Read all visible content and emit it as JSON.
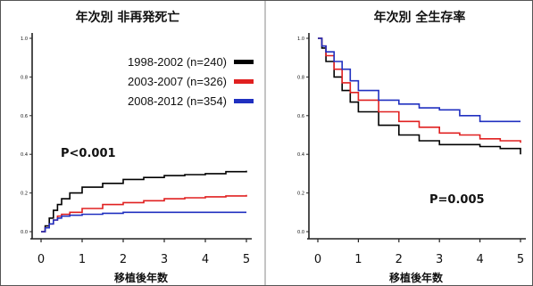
{
  "chart_data": [
    {
      "type": "line",
      "title": "年次別 非再発死亡",
      "xlabel": "移植後年数",
      "ylabel": "",
      "xlim": [
        0,
        5
      ],
      "ylim": [
        0,
        1.0
      ],
      "x_ticks": [
        "0",
        "1",
        "2",
        "3",
        "4",
        "5"
      ],
      "y_ticks": [
        "0.0",
        "0.2",
        "0.4",
        "0.6",
        "0.8",
        "1.0"
      ],
      "grid": false,
      "legend_position": "top-right",
      "annotation": "P<0.001",
      "series": [
        {
          "name": "1998-2002 (n=240)",
          "color": "#000000",
          "x": [
            0,
            0.1,
            0.2,
            0.3,
            0.4,
            0.5,
            0.7,
            1.0,
            1.5,
            2.0,
            2.5,
            3.0,
            3.5,
            4.0,
            4.5,
            5.0
          ],
          "y": [
            0,
            0.03,
            0.07,
            0.11,
            0.14,
            0.17,
            0.2,
            0.23,
            0.25,
            0.27,
            0.28,
            0.29,
            0.295,
            0.3,
            0.31,
            0.315
          ]
        },
        {
          "name": "2003-2007 (n=326)",
          "color": "#e02020",
          "x": [
            0,
            0.1,
            0.2,
            0.3,
            0.4,
            0.5,
            0.7,
            1.0,
            1.5,
            2.0,
            2.5,
            3.0,
            3.5,
            4.0,
            4.5,
            5.0
          ],
          "y": [
            0,
            0.02,
            0.04,
            0.06,
            0.08,
            0.09,
            0.1,
            0.12,
            0.14,
            0.15,
            0.16,
            0.17,
            0.175,
            0.18,
            0.185,
            0.19
          ]
        },
        {
          "name": "2008-2012 (n=354)",
          "color": "#2030c0",
          "x": [
            0,
            0.1,
            0.2,
            0.3,
            0.4,
            0.5,
            0.7,
            1.0,
            1.5,
            2.0,
            2.5,
            3.0,
            3.5,
            4.0,
            4.5,
            5.0
          ],
          "y": [
            0,
            0.02,
            0.04,
            0.06,
            0.07,
            0.08,
            0.085,
            0.09,
            0.095,
            0.1,
            0.1,
            0.1,
            0.1,
            0.1,
            0.1,
            0.1
          ]
        }
      ]
    },
    {
      "type": "line",
      "title": "年次別 全生存率",
      "xlabel": "移植後年数",
      "ylabel": "",
      "xlim": [
        0,
        5
      ],
      "ylim": [
        0,
        1.0
      ],
      "x_ticks": [
        "0",
        "1",
        "2",
        "3",
        "4",
        "5"
      ],
      "y_ticks": [
        "0.0",
        "0.2",
        "0.4",
        "0.6",
        "0.8",
        "1.0"
      ],
      "grid": false,
      "annotation": "P=0.005",
      "series": [
        {
          "name": "1998-2002 (n=240)",
          "color": "#000000",
          "x": [
            0,
            0.1,
            0.2,
            0.4,
            0.6,
            0.8,
            1.0,
            1.5,
            2.0,
            2.5,
            3.0,
            3.5,
            4.0,
            4.5,
            5.0
          ],
          "y": [
            1.0,
            0.95,
            0.88,
            0.8,
            0.73,
            0.67,
            0.62,
            0.55,
            0.5,
            0.47,
            0.45,
            0.45,
            0.44,
            0.43,
            0.4
          ]
        },
        {
          "name": "2003-2007 (n=326)",
          "color": "#e02020",
          "x": [
            0,
            0.1,
            0.2,
            0.4,
            0.6,
            0.8,
            1.0,
            1.5,
            2.0,
            2.5,
            3.0,
            3.5,
            4.0,
            4.5,
            5.0
          ],
          "y": [
            1.0,
            0.96,
            0.91,
            0.84,
            0.77,
            0.72,
            0.68,
            0.62,
            0.57,
            0.54,
            0.51,
            0.5,
            0.48,
            0.47,
            0.46
          ]
        },
        {
          "name": "2008-2012 (n=354)",
          "color": "#2030c0",
          "x": [
            0,
            0.1,
            0.2,
            0.4,
            0.6,
            0.8,
            1.0,
            1.5,
            2.0,
            2.5,
            3.0,
            3.5,
            4.0,
            4.5,
            5.0
          ],
          "y": [
            1.0,
            0.96,
            0.93,
            0.88,
            0.84,
            0.78,
            0.73,
            0.68,
            0.66,
            0.64,
            0.63,
            0.6,
            0.57,
            0.57,
            0.57
          ]
        }
      ]
    }
  ]
}
